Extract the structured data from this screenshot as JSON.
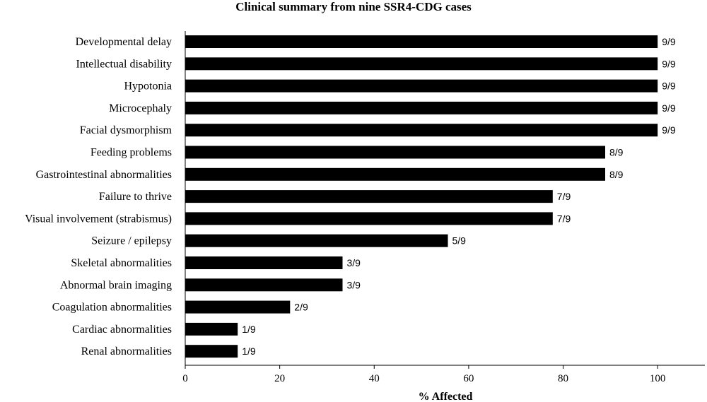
{
  "chart_data": {
    "type": "bar",
    "orientation": "horizontal",
    "title": "Clinical summary from nine SSR4-CDG cases",
    "xlabel": "% Affected",
    "ylabel": "",
    "xlim": [
      0,
      110
    ],
    "xticks": [
      0,
      20,
      40,
      60,
      80,
      100
    ],
    "grid": false,
    "legend": "none",
    "bar_color": "#000000",
    "categories": [
      "Developmental delay",
      "Intellectual disability",
      "Hypotonia",
      "Microcephaly",
      "Facial dysmorphism",
      "Feeding problems",
      "Gastrointestinal abnormalities",
      "Failure to thrive",
      "Visual involvement (strabismus)",
      "Seizure / epilepsy",
      "Skeletal abnormalities",
      "Abnormal brain imaging",
      "Coagulation abnormalities",
      "Cardiac abnormalities",
      "Renal abnormalities"
    ],
    "values": [
      100,
      100,
      100,
      100,
      100,
      88.9,
      88.9,
      77.8,
      77.8,
      55.6,
      33.3,
      33.3,
      22.2,
      11.1,
      11.1
    ],
    "data_labels": [
      "9/9",
      "9/9",
      "9/9",
      "9/9",
      "9/9",
      "8/9",
      "8/9",
      "7/9",
      "7/9",
      "5/9",
      "3/9",
      "3/9",
      "2/9",
      "1/9",
      "1/9"
    ]
  }
}
